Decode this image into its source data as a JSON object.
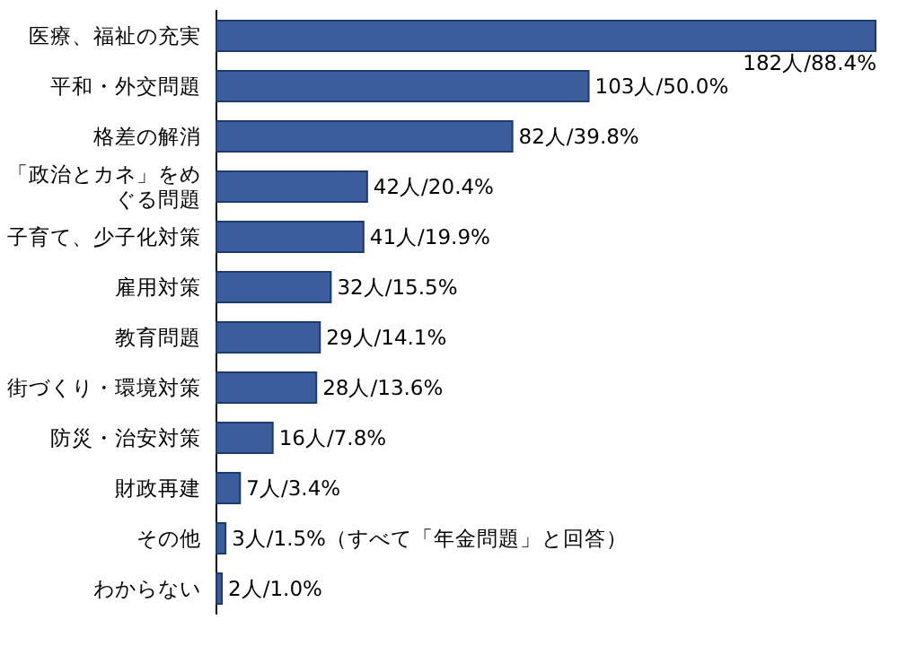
{
  "chart_data": {
    "type": "bar",
    "orientation": "horizontal",
    "categories": [
      "医療、福祉の充実",
      "平和・外交問題",
      "格差の解消",
      "「政治とカネ」をめぐる問題",
      "子育て、少子化対策",
      "雇用対策",
      "教育問題",
      "街づくり・環境対策",
      "防災・治安対策",
      "財政再建",
      "その他",
      "わからない"
    ],
    "values": [
      182,
      103,
      82,
      42,
      41,
      32,
      29,
      28,
      16,
      7,
      3,
      2
    ],
    "value_labels": [
      "182人/88.4%",
      "103人/50.0%",
      "82人/39.8%",
      "42人/20.4%",
      "41人/19.9%",
      "32人/15.5%",
      "29人/14.1%",
      "28人/13.6%",
      "16人/7.8%",
      "7人/3.4%",
      "3人/1.5%（すべて「年金問題」と回答）",
      "2人/1.0%"
    ],
    "color": "#3b5d9c",
    "tick_labels": "y"
  }
}
